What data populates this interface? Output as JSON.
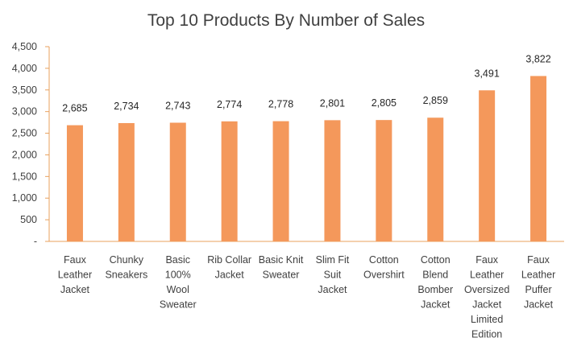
{
  "chart_data": {
    "type": "bar",
    "title": "Top 10 Products By Number of Sales",
    "xlabel": "",
    "ylabel": "",
    "categories": [
      "Faux Leather Jacket",
      "Chunky Sneakers",
      "Basic 100% Wool Sweater",
      "Rib Collar Jacket",
      "Basic Knit Sweater",
      "Slim Fit Suit Jacket",
      "Cotton Overshirt",
      "Cotton Blend Bomber Jacket",
      "Faux Leather Oversized Jacket Limited Edition",
      "Faux Leather Puffer Jacket"
    ],
    "category_label_lines": [
      [
        "Faux",
        "Leather",
        "Jacket"
      ],
      [
        "Chunky",
        "Sneakers"
      ],
      [
        "Basic",
        "100%",
        "Wool",
        "Sweater"
      ],
      [
        "Rib Collar",
        "Jacket"
      ],
      [
        "Basic Knit",
        "Sweater"
      ],
      [
        "Slim Fit",
        "Suit",
        "Jacket"
      ],
      [
        "Cotton",
        "Overshirt"
      ],
      [
        "Cotton",
        "Blend",
        "Bomber",
        "Jacket"
      ],
      [
        "Faux",
        "Leather",
        "Oversized",
        "Jacket",
        "Limited",
        "Edition"
      ],
      [
        "Faux",
        "Leather",
        "Puffer",
        "Jacket"
      ]
    ],
    "values": [
      2685,
      2734,
      2743,
      2774,
      2778,
      2801,
      2805,
      2859,
      3491,
      3822
    ],
    "data_labels": [
      "2,685",
      "2,734",
      "2,743",
      "2,774",
      "2,778",
      "2,801",
      "2,805",
      "2,859",
      "3,491",
      "3,822"
    ],
    "ylim": [
      0,
      4500
    ],
    "y_ticks": [
      {
        "value": 0,
        "label": "-"
      },
      {
        "value": 500,
        "label": "500"
      },
      {
        "value": 1000,
        "label": "1,000"
      },
      {
        "value": 1500,
        "label": "1,500"
      },
      {
        "value": 2000,
        "label": "2,000"
      },
      {
        "value": 2500,
        "label": "2,500"
      },
      {
        "value": 3000,
        "label": "3,000"
      },
      {
        "value": 3500,
        "label": "3,500"
      },
      {
        "value": 4000,
        "label": "4,000"
      },
      {
        "value": 4500,
        "label": "4,500"
      }
    ],
    "grid": false,
    "legend": "none",
    "colors": {
      "bar": "#F4985B",
      "axis": "#E8A15E",
      "text": "#404040"
    }
  }
}
